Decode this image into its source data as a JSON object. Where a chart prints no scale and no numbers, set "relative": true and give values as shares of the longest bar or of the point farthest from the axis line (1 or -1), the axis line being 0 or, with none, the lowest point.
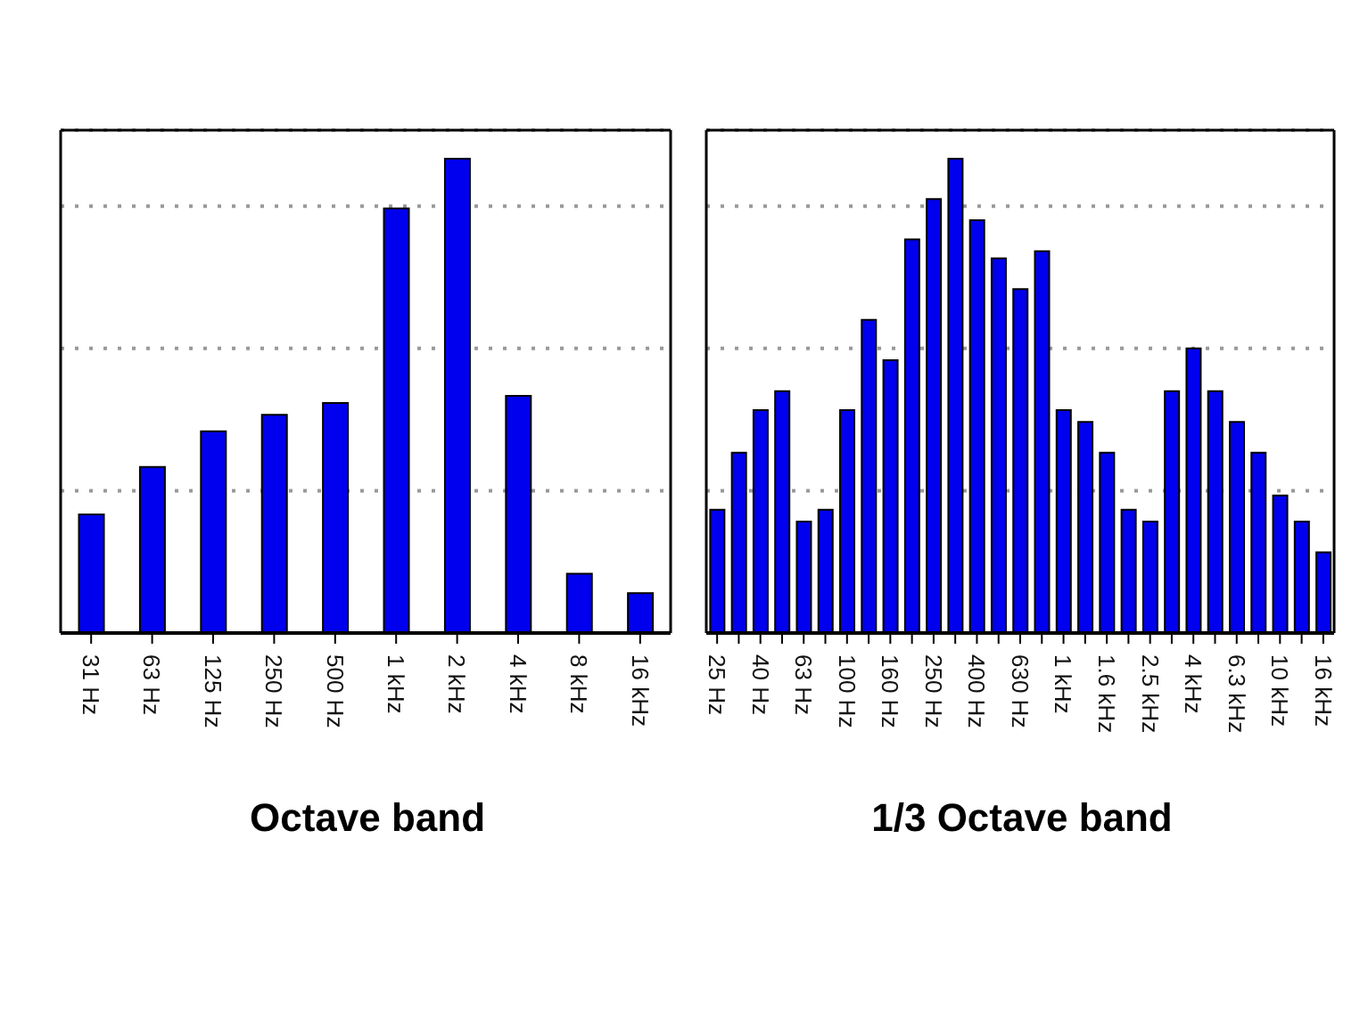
{
  "chart_data": [
    {
      "type": "bar",
      "xlabel": "Octave band",
      "relative": true,
      "grid": "y",
      "color": "#0000ee",
      "categories": [
        "31 Hz",
        "63 Hz",
        "125 Hz",
        "250 Hz",
        "500 Hz",
        "1 kHz",
        "2 kHz",
        "4 kHz",
        "8 kHz",
        "16 kHz"
      ],
      "values": [
        0.25,
        0.35,
        0.425,
        0.46,
        0.485,
        0.895,
        1,
        0.5,
        0.125,
        0.084
      ]
    },
    {
      "type": "bar",
      "xlabel": "1/3 Octave band",
      "relative": true,
      "grid": "y",
      "color": "#0000ee",
      "categories": [
        "25 Hz",
        null,
        "40 Hz",
        null,
        "63 Hz",
        null,
        "100 Hz",
        null,
        "160 Hz",
        null,
        "250 Hz",
        null,
        "400 Hz",
        null,
        "630 Hz",
        null,
        "1 kHz",
        null,
        "1.6 kHz",
        null,
        "2.5 kHz",
        null,
        "4 kHz",
        null,
        "6.3 kHz",
        null,
        "10 kHz",
        null,
        "16 kHz"
      ],
      "values": [
        0.26,
        0.38,
        0.47,
        0.51,
        0.235,
        0.26,
        0.47,
        0.66,
        0.575,
        0.83,
        0.915,
        1,
        0.87,
        0.79,
        0.725,
        0.805,
        0.47,
        0.445,
        0.38,
        0.26,
        0.235,
        0.51,
        0.6,
        0.51,
        0.445,
        0.38,
        0.29,
        0.235,
        0.17
      ]
    }
  ]
}
